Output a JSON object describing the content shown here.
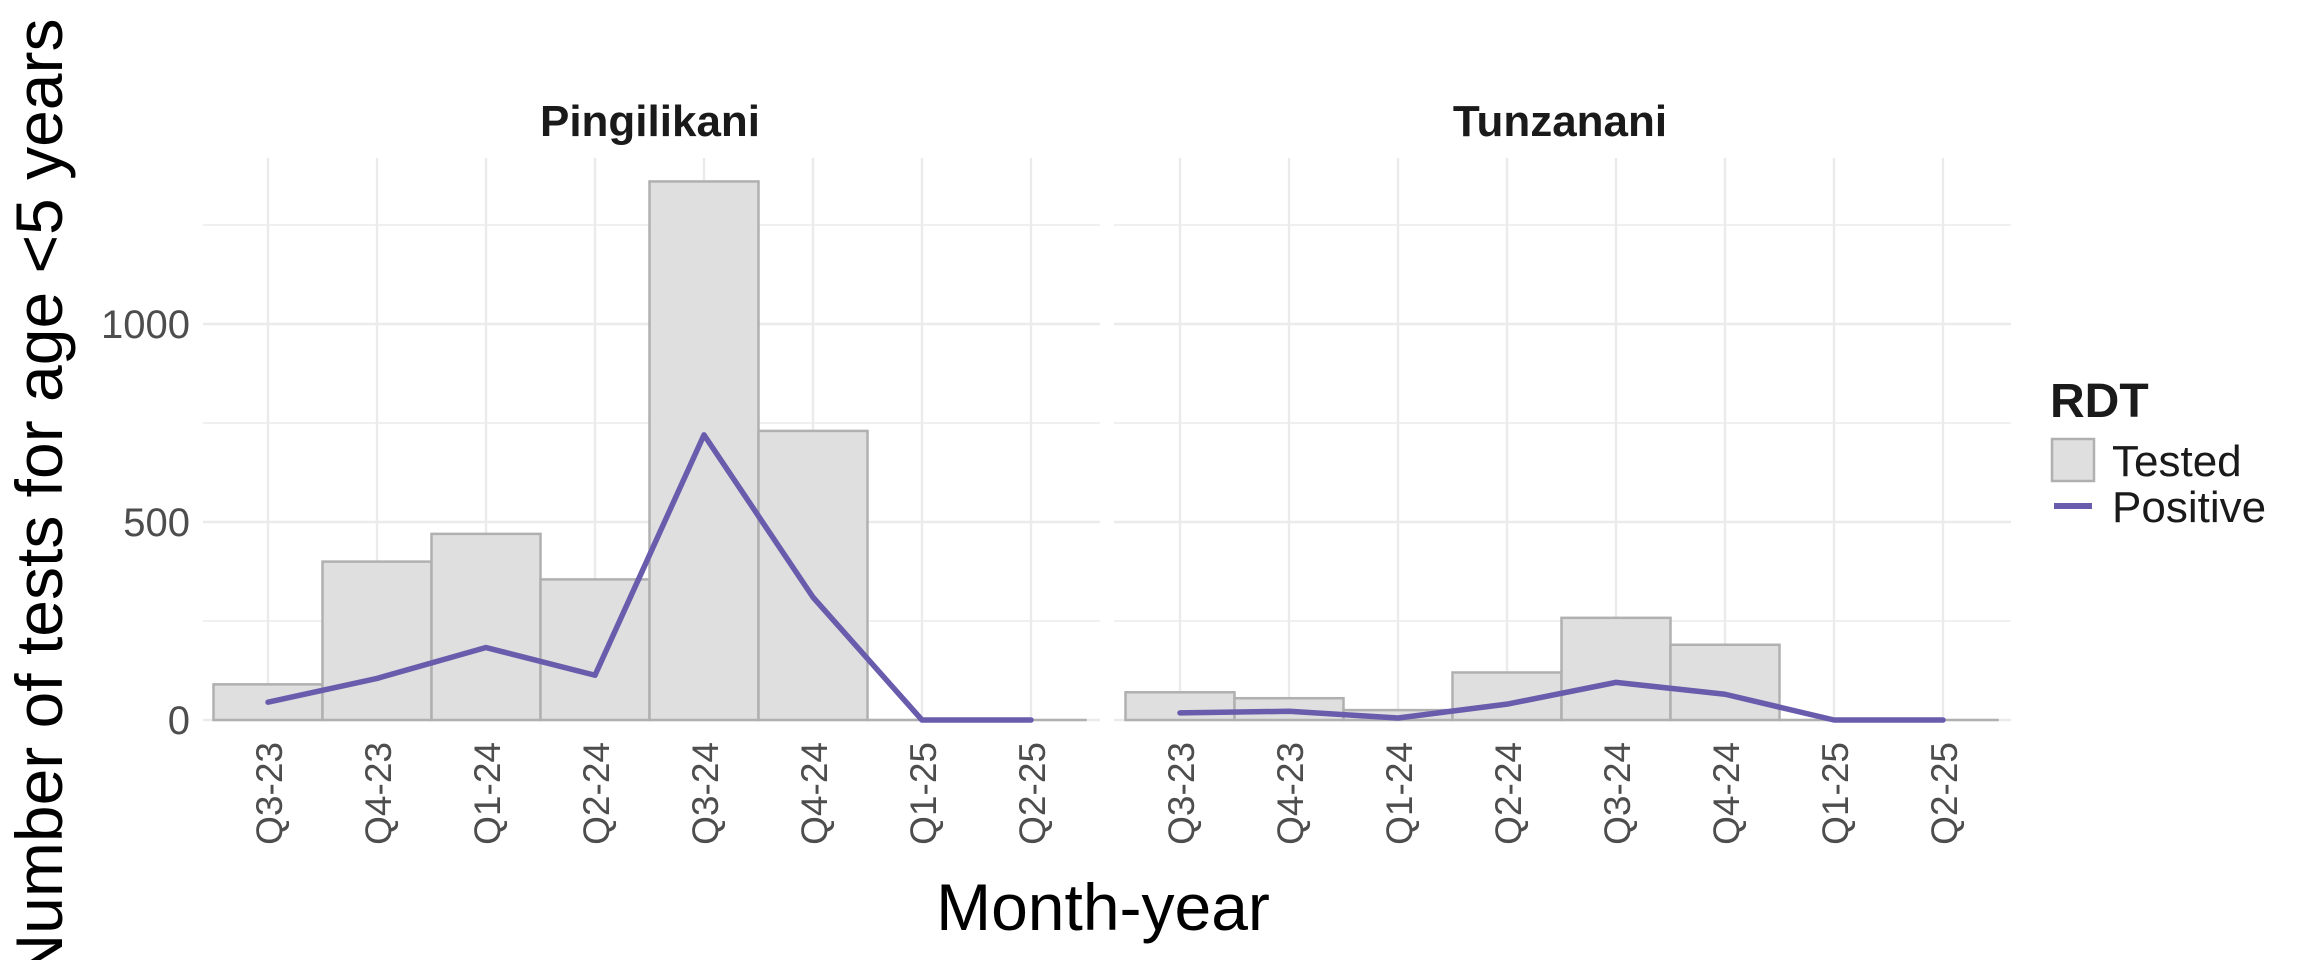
{
  "chart_data": {
    "type": "bar",
    "ylabel": "Number of tests for age <5 years",
    "xlabel": "Month-year",
    "categories": [
      "Q3-23",
      "Q4-23",
      "Q1-24",
      "Q2-24",
      "Q3-24",
      "Q4-24",
      "Q1-25",
      "Q2-25"
    ],
    "y_ticks": [
      "0",
      "500",
      "1000"
    ],
    "ylim": [
      0,
      1360
    ],
    "grid": true,
    "legend": {
      "title": "RDT",
      "position": "right",
      "items": [
        {
          "label": "Tested",
          "kind": "bar",
          "color": "#dfdfdf"
        },
        {
          "label": "Positive",
          "kind": "line",
          "color": "#6a5cac"
        }
      ]
    },
    "panels": [
      {
        "title": "Pingilikani",
        "tested": [
          90,
          400,
          470,
          355,
          1360,
          730,
          0,
          0
        ],
        "positive": [
          45,
          105,
          183,
          113,
          720,
          310,
          0,
          0
        ]
      },
      {
        "title": "Tunzanani",
        "tested": [
          70,
          55,
          25,
          120,
          258,
          190,
          0,
          0
        ],
        "positive": [
          18,
          22,
          5,
          40,
          95,
          65,
          0,
          0
        ]
      }
    ]
  }
}
